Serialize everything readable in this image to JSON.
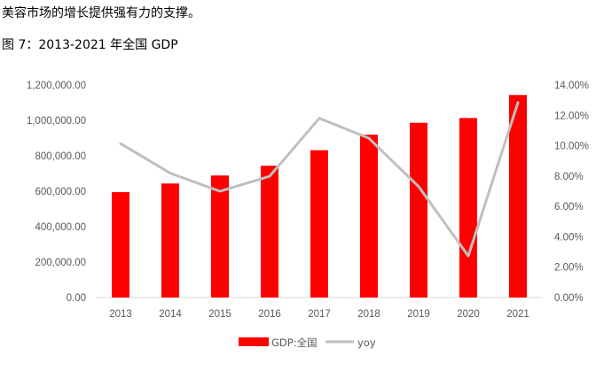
{
  "intro_text": "美容市场的增长提供强有力的支撑。",
  "figure_title": "图  7：2013-2021 年全国 GDP",
  "chart_data": {
    "type": "bar+line",
    "title": "",
    "categories": [
      "2013",
      "2014",
      "2015",
      "2016",
      "2017",
      "2018",
      "2019",
      "2020",
      "2021"
    ],
    "series": [
      {
        "name": "GDP:全国",
        "type": "bar",
        "axis": "left",
        "color": "#ff0000",
        "values": [
          595244.4,
          643974.0,
          689052.1,
          744127.2,
          832035.9,
          919281.1,
          986515.2,
          1013567.0,
          1143669.7
        ]
      },
      {
        "name": "yoy",
        "type": "line",
        "axis": "right",
        "color": "#bfbfbf",
        "values": [
          10.14,
          8.19,
          7.0,
          7.99,
          11.81,
          10.49,
          7.31,
          2.74,
          12.84
        ]
      }
    ],
    "y_left": {
      "min": 0,
      "max": 1200000,
      "step": 200000,
      "tick_labels": [
        "0.00",
        "200,000.00",
        "400,000.00",
        "600,000.00",
        "800,000.00",
        "1,000,000.00",
        "1,200,000.00"
      ]
    },
    "y_right": {
      "min": 0,
      "max": 14,
      "step": 2,
      "tick_labels": [
        "0.00%",
        "2.00%",
        "4.00%",
        "6.00%",
        "8.00%",
        "10.00%",
        "12.00%",
        "14.00%"
      ]
    },
    "grid": false,
    "legend_position": "bottom"
  }
}
